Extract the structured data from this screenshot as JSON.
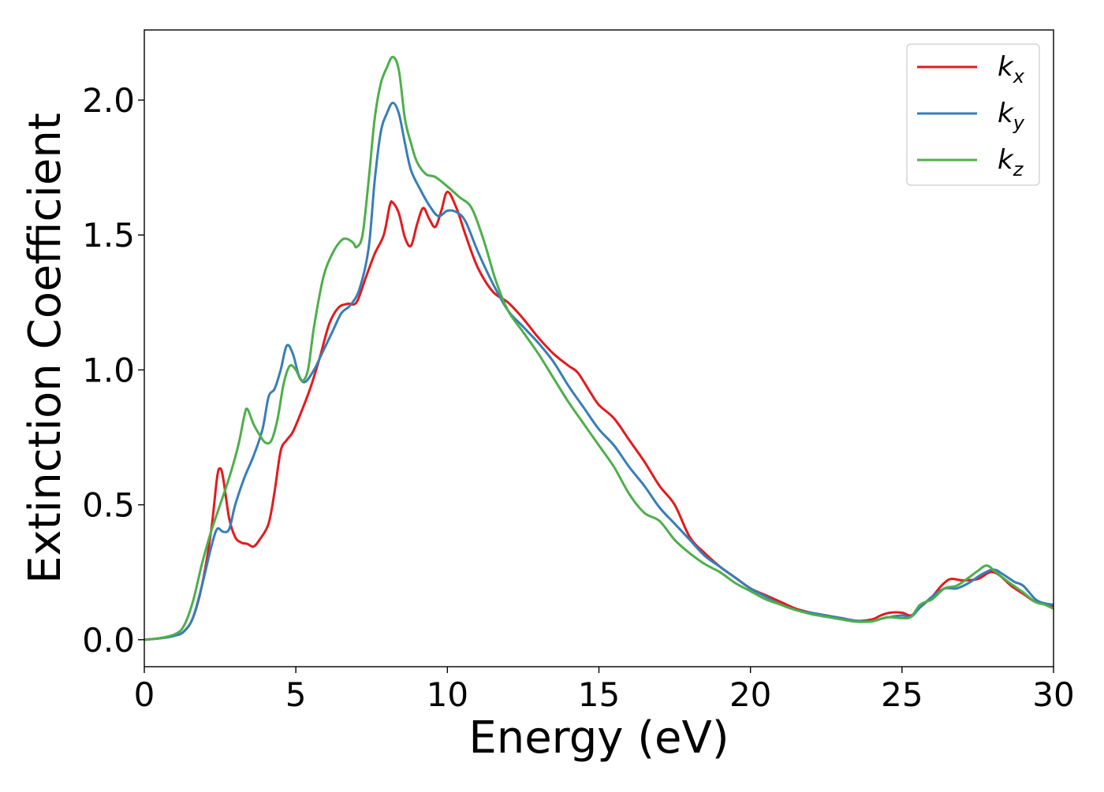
{
  "chart_data": {
    "type": "line",
    "xlabel": "Energy (eV)",
    "ylabel": "Extinction Coefficient",
    "xlim": [
      0,
      30
    ],
    "ylim": [
      -0.1,
      2.26
    ],
    "xticks": [
      0,
      5,
      10,
      15,
      20,
      25,
      30
    ],
    "yticks": [
      0.0,
      0.5,
      1.0,
      1.5,
      2.0
    ],
    "xtick_labels": [
      "0",
      "5",
      "10",
      "15",
      "20",
      "25",
      "30"
    ],
    "ytick_labels": [
      "0.0",
      "0.5",
      "1.0",
      "1.5",
      "2.0"
    ],
    "grid": false,
    "legend_position": "top-right",
    "series": [
      {
        "name": "k_x",
        "label_base": "k",
        "label_sub": "x",
        "color": "#e41a1c",
        "points": [
          [
            0,
            0
          ],
          [
            0.5,
            0.005
          ],
          [
            1.0,
            0.015
          ],
          [
            1.3,
            0.03
          ],
          [
            1.6,
            0.08
          ],
          [
            1.9,
            0.2
          ],
          [
            2.2,
            0.4
          ],
          [
            2.4,
            0.6
          ],
          [
            2.5,
            0.635
          ],
          [
            2.6,
            0.6
          ],
          [
            2.8,
            0.45
          ],
          [
            3.0,
            0.38
          ],
          [
            3.2,
            0.36
          ],
          [
            3.4,
            0.355
          ],
          [
            3.6,
            0.345
          ],
          [
            3.8,
            0.37
          ],
          [
            4.1,
            0.43
          ],
          [
            4.3,
            0.55
          ],
          [
            4.5,
            0.7
          ],
          [
            4.7,
            0.74
          ],
          [
            4.9,
            0.77
          ],
          [
            5.2,
            0.85
          ],
          [
            5.5,
            0.94
          ],
          [
            5.8,
            1.05
          ],
          [
            6.1,
            1.17
          ],
          [
            6.4,
            1.23
          ],
          [
            6.7,
            1.245
          ],
          [
            7.0,
            1.25
          ],
          [
            7.3,
            1.34
          ],
          [
            7.6,
            1.43
          ],
          [
            7.9,
            1.5
          ],
          [
            8.1,
            1.61
          ],
          [
            8.2,
            1.62
          ],
          [
            8.4,
            1.58
          ],
          [
            8.6,
            1.49
          ],
          [
            8.8,
            1.46
          ],
          [
            9.0,
            1.54
          ],
          [
            9.2,
            1.6
          ],
          [
            9.4,
            1.56
          ],
          [
            9.6,
            1.53
          ],
          [
            9.8,
            1.59
          ],
          [
            10.0,
            1.66
          ],
          [
            10.3,
            1.6
          ],
          [
            10.6,
            1.5
          ],
          [
            11.0,
            1.38
          ],
          [
            11.5,
            1.29
          ],
          [
            12.0,
            1.25
          ],
          [
            12.5,
            1.19
          ],
          [
            13.0,
            1.12
          ],
          [
            13.5,
            1.06
          ],
          [
            14.0,
            1.015
          ],
          [
            14.3,
            0.99
          ],
          [
            14.7,
            0.92
          ],
          [
            15.0,
            0.87
          ],
          [
            15.5,
            0.82
          ],
          [
            16.0,
            0.74
          ],
          [
            16.5,
            0.66
          ],
          [
            17.0,
            0.57
          ],
          [
            17.5,
            0.5
          ],
          [
            18.0,
            0.38
          ],
          [
            18.5,
            0.32
          ],
          [
            19.0,
            0.27
          ],
          [
            19.5,
            0.23
          ],
          [
            20.0,
            0.19
          ],
          [
            20.5,
            0.165
          ],
          [
            21.0,
            0.14
          ],
          [
            21.5,
            0.115
          ],
          [
            22.0,
            0.1
          ],
          [
            22.5,
            0.09
          ],
          [
            23.0,
            0.08
          ],
          [
            23.5,
            0.07
          ],
          [
            24.0,
            0.075
          ],
          [
            24.3,
            0.09
          ],
          [
            24.6,
            0.1
          ],
          [
            25.0,
            0.1
          ],
          [
            25.3,
            0.09
          ],
          [
            25.6,
            0.12
          ],
          [
            26.0,
            0.16
          ],
          [
            26.3,
            0.2
          ],
          [
            26.6,
            0.225
          ],
          [
            27.0,
            0.22
          ],
          [
            27.5,
            0.225
          ],
          [
            27.9,
            0.25
          ],
          [
            28.2,
            0.24
          ],
          [
            28.6,
            0.2
          ],
          [
            29.0,
            0.17
          ],
          [
            29.4,
            0.14
          ],
          [
            29.7,
            0.135
          ],
          [
            30.0,
            0.125
          ]
        ]
      },
      {
        "name": "k_y",
        "label_base": "k",
        "label_sub": "y",
        "color": "#377eb8",
        "points": [
          [
            0,
            0
          ],
          [
            0.5,
            0.005
          ],
          [
            1.0,
            0.015
          ],
          [
            1.3,
            0.03
          ],
          [
            1.6,
            0.08
          ],
          [
            1.9,
            0.2
          ],
          [
            2.2,
            0.34
          ],
          [
            2.4,
            0.41
          ],
          [
            2.6,
            0.4
          ],
          [
            2.8,
            0.41
          ],
          [
            3.0,
            0.5
          ],
          [
            3.3,
            0.6
          ],
          [
            3.6,
            0.68
          ],
          [
            3.9,
            0.78
          ],
          [
            4.1,
            0.9
          ],
          [
            4.3,
            0.93
          ],
          [
            4.5,
            1.0
          ],
          [
            4.7,
            1.09
          ],
          [
            4.9,
            1.06
          ],
          [
            5.1,
            0.98
          ],
          [
            5.3,
            0.955
          ],
          [
            5.6,
            1.0
          ],
          [
            5.9,
            1.07
          ],
          [
            6.2,
            1.14
          ],
          [
            6.5,
            1.21
          ],
          [
            6.8,
            1.24
          ],
          [
            7.1,
            1.3
          ],
          [
            7.4,
            1.45
          ],
          [
            7.6,
            1.7
          ],
          [
            7.8,
            1.88
          ],
          [
            8.0,
            1.95
          ],
          [
            8.2,
            1.99
          ],
          [
            8.4,
            1.95
          ],
          [
            8.6,
            1.84
          ],
          [
            8.8,
            1.74
          ],
          [
            9.1,
            1.67
          ],
          [
            9.4,
            1.61
          ],
          [
            9.7,
            1.57
          ],
          [
            10.0,
            1.59
          ],
          [
            10.3,
            1.585
          ],
          [
            10.6,
            1.55
          ],
          [
            11.0,
            1.44
          ],
          [
            11.5,
            1.32
          ],
          [
            12.0,
            1.22
          ],
          [
            12.5,
            1.16
          ],
          [
            13.0,
            1.1
          ],
          [
            13.5,
            1.03
          ],
          [
            14.0,
            0.94
          ],
          [
            14.5,
            0.86
          ],
          [
            15.0,
            0.78
          ],
          [
            15.5,
            0.72
          ],
          [
            16.0,
            0.64
          ],
          [
            16.5,
            0.57
          ],
          [
            17.0,
            0.49
          ],
          [
            17.5,
            0.43
          ],
          [
            18.0,
            0.37
          ],
          [
            18.5,
            0.31
          ],
          [
            19.0,
            0.27
          ],
          [
            19.5,
            0.23
          ],
          [
            20.0,
            0.19
          ],
          [
            20.5,
            0.16
          ],
          [
            21.0,
            0.13
          ],
          [
            21.5,
            0.11
          ],
          [
            22.0,
            0.1
          ],
          [
            22.5,
            0.09
          ],
          [
            23.0,
            0.08
          ],
          [
            23.5,
            0.07
          ],
          [
            24.0,
            0.068
          ],
          [
            24.4,
            0.08
          ],
          [
            25.0,
            0.09
          ],
          [
            25.3,
            0.085
          ],
          [
            25.6,
            0.12
          ],
          [
            26.0,
            0.16
          ],
          [
            26.4,
            0.19
          ],
          [
            26.8,
            0.19
          ],
          [
            27.2,
            0.21
          ],
          [
            27.6,
            0.24
          ],
          [
            28.0,
            0.26
          ],
          [
            28.3,
            0.245
          ],
          [
            28.7,
            0.215
          ],
          [
            29.0,
            0.2
          ],
          [
            29.4,
            0.15
          ],
          [
            29.7,
            0.135
          ],
          [
            30.0,
            0.13
          ]
        ]
      },
      {
        "name": "k_z",
        "label_base": "k",
        "label_sub": "z",
        "color": "#4daf4a",
        "points": [
          [
            0,
            0
          ],
          [
            0.5,
            0.006
          ],
          [
            1.0,
            0.02
          ],
          [
            1.3,
            0.05
          ],
          [
            1.6,
            0.14
          ],
          [
            1.9,
            0.28
          ],
          [
            2.2,
            0.4
          ],
          [
            2.5,
            0.5
          ],
          [
            2.8,
            0.6
          ],
          [
            3.1,
            0.72
          ],
          [
            3.3,
            0.83
          ],
          [
            3.4,
            0.855
          ],
          [
            3.6,
            0.8
          ],
          [
            3.8,
            0.76
          ],
          [
            4.0,
            0.73
          ],
          [
            4.2,
            0.74
          ],
          [
            4.4,
            0.82
          ],
          [
            4.6,
            0.95
          ],
          [
            4.8,
            1.015
          ],
          [
            5.0,
            1.0
          ],
          [
            5.2,
            0.96
          ],
          [
            5.4,
            1.0
          ],
          [
            5.6,
            1.16
          ],
          [
            5.9,
            1.34
          ],
          [
            6.2,
            1.43
          ],
          [
            6.5,
            1.48
          ],
          [
            6.7,
            1.485
          ],
          [
            6.9,
            1.47
          ],
          [
            7.0,
            1.455
          ],
          [
            7.2,
            1.5
          ],
          [
            7.4,
            1.7
          ],
          [
            7.6,
            1.93
          ],
          [
            7.8,
            2.06
          ],
          [
            8.0,
            2.12
          ],
          [
            8.2,
            2.16
          ],
          [
            8.4,
            2.11
          ],
          [
            8.6,
            1.93
          ],
          [
            8.8,
            1.84
          ],
          [
            9.0,
            1.77
          ],
          [
            9.3,
            1.725
          ],
          [
            9.6,
            1.715
          ],
          [
            10.0,
            1.68
          ],
          [
            10.4,
            1.64
          ],
          [
            10.8,
            1.6
          ],
          [
            11.2,
            1.48
          ],
          [
            11.6,
            1.33
          ],
          [
            12.0,
            1.22
          ],
          [
            12.5,
            1.14
          ],
          [
            13.0,
            1.06
          ],
          [
            13.5,
            0.97
          ],
          [
            14.0,
            0.88
          ],
          [
            14.5,
            0.8
          ],
          [
            15.0,
            0.72
          ],
          [
            15.5,
            0.64
          ],
          [
            16.0,
            0.54
          ],
          [
            16.5,
            0.47
          ],
          [
            17.0,
            0.44
          ],
          [
            17.5,
            0.37
          ],
          [
            18.0,
            0.32
          ],
          [
            18.5,
            0.28
          ],
          [
            19.0,
            0.25
          ],
          [
            19.5,
            0.21
          ],
          [
            20.0,
            0.18
          ],
          [
            20.5,
            0.15
          ],
          [
            21.0,
            0.13
          ],
          [
            21.5,
            0.11
          ],
          [
            22.0,
            0.095
          ],
          [
            22.5,
            0.085
          ],
          [
            23.0,
            0.075
          ],
          [
            23.5,
            0.067
          ],
          [
            24.0,
            0.068
          ],
          [
            24.5,
            0.083
          ],
          [
            25.0,
            0.08
          ],
          [
            25.3,
            0.085
          ],
          [
            25.6,
            0.13
          ],
          [
            26.0,
            0.15
          ],
          [
            26.4,
            0.19
          ],
          [
            26.8,
            0.2
          ],
          [
            27.2,
            0.23
          ],
          [
            27.5,
            0.255
          ],
          [
            27.8,
            0.275
          ],
          [
            28.1,
            0.25
          ],
          [
            28.5,
            0.215
          ],
          [
            29.0,
            0.175
          ],
          [
            29.4,
            0.14
          ],
          [
            29.7,
            0.13
          ],
          [
            30.0,
            0.115
          ]
        ]
      }
    ]
  }
}
